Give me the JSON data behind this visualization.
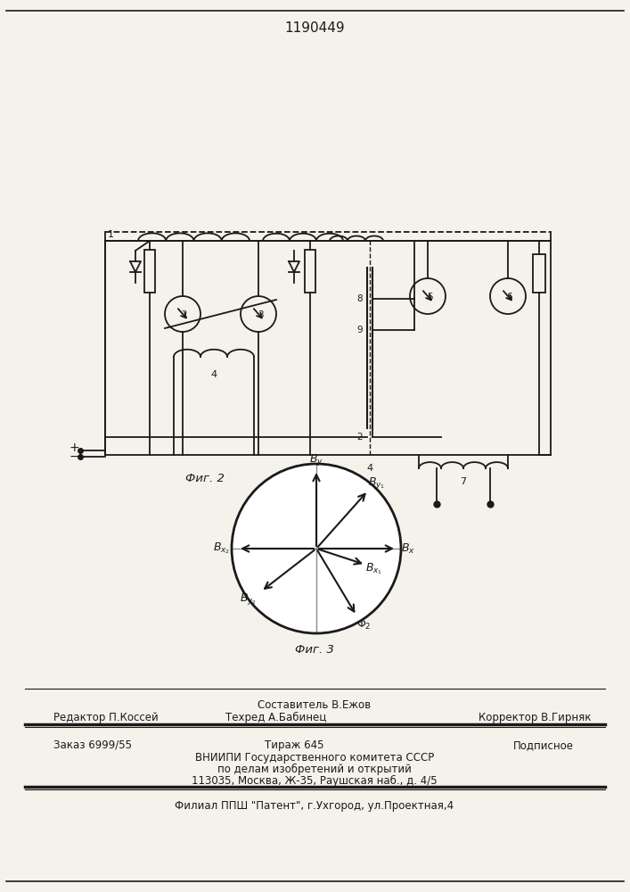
{
  "patent_number": "1190449",
  "bg_color": "#f5f2ec",
  "fig2_label": "Фиг. 2",
  "fig3_label": "Фиг. 3",
  "footer_sestavitel": "Составитель В.Ежов",
  "footer_redaktor": "Редактор П.Коссей",
  "footer_tehred": "Техред А.Бабинец",
  "footer_korrektor": "Корректор В.Гирняк",
  "footer_zakaz": "Заказ 6999/55",
  "footer_tirazh": "Тираж 645",
  "footer_podpisnoe": "Подписное",
  "footer_vniiipi1": "ВНИИПИ Государственного комитета СССР",
  "footer_vniiipi2": "по делам изобретений и открытий",
  "footer_vniiipi3": "113035, Москва, Ж-35, Раушская наб., д. 4/5",
  "footer_filial": "Филиал ППШ \"Патент\", г.Ухгород, ул.Проектная,4"
}
